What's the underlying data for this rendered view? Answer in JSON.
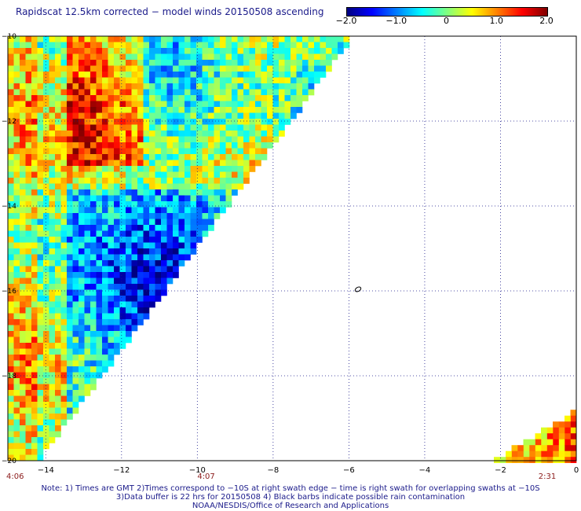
{
  "title": "Rapidscat 12.5km corrected − model winds 20150508 ascending",
  "colorbar": {
    "tick_labels": [
      "−2.0",
      "−1.0",
      "0",
      "1.0",
      "2.0"
    ],
    "tick_values": [
      -2.0,
      -1.0,
      0,
      1.0,
      2.0
    ],
    "range": [
      -2.0,
      2.0
    ],
    "colors": [
      "#000080",
      "#0000ff",
      "#0080ff",
      "#00ffff",
      "#80ff80",
      "#ffff00",
      "#ff8000",
      "#ff0000",
      "#800000"
    ]
  },
  "map": {
    "lon_range": [
      -15,
      0
    ],
    "lat_range": [
      -20,
      -10
    ],
    "x_tick_labels": [
      "−14",
      "−12",
      "−10",
      "−8",
      "−6",
      "−4",
      "−2",
      "0"
    ],
    "x_tick_values": [
      -14,
      -12,
      -10,
      -8,
      -6,
      -4,
      -2,
      0
    ],
    "y_tick_labels": [
      "−10",
      "−12",
      "−14",
      "−16",
      "−18",
      "−20"
    ],
    "y_tick_values": [
      -10,
      -12,
      -14,
      -16,
      -18,
      -20
    ],
    "grid": true,
    "grid_style": "dotted",
    "time_labels": [
      {
        "text": "4:06",
        "lon": -15
      },
      {
        "text": "4:07",
        "lon": -10
      },
      {
        "text": "2:31",
        "lon": -1
      }
    ],
    "contour_label": "0"
  },
  "notes": [
    "Note: 1) Times are GMT 2)Times correspond to −10S at right swath edge − time is right swath for overlapping swaths at −10S",
    "3)Data buffer is 22 hrs for 20150508 4) Black barbs indicate possible rain contamination",
    "NOAA/NESDIS/Office of Research and Applications"
  ]
}
